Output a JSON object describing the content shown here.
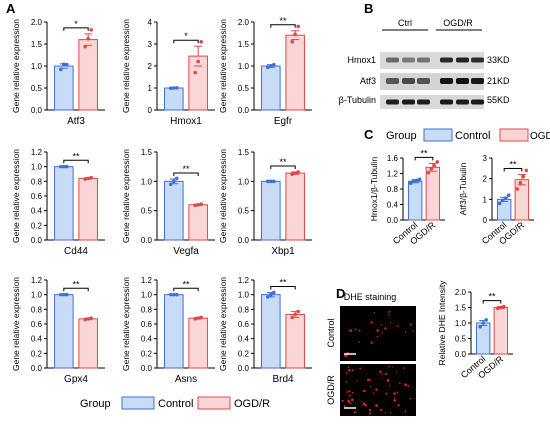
{
  "panels": {
    "A": {
      "label": "A",
      "ylabel": "Gene relative expression"
    },
    "B": {
      "label": "B"
    },
    "C": {
      "label": "C"
    },
    "D": {
      "label": "D",
      "image_title": "DHE staining"
    }
  },
  "legend": {
    "title": "Group",
    "items": [
      {
        "name": "Control",
        "fill": "#c9dcf7",
        "stroke": "#3f6fd6"
      },
      {
        "name": "OGD/R",
        "fill": "#fbd6d6",
        "stroke": "#e04848"
      }
    ]
  },
  "colors": {
    "control_fill": "#c9dcf7",
    "control_stroke": "#3f6fd6",
    "ogd_fill": "#fbd6d6",
    "ogd_stroke": "#e04848"
  },
  "chart_data": [
    {
      "panel": "A",
      "type": "bar",
      "gene": "Atf3",
      "ylabel": "Gene relative expression",
      "categories": [
        "Control",
        "OGD/R"
      ],
      "values": [
        1.0,
        1.6
      ],
      "errors": [
        0.05,
        0.13
      ],
      "ylim": [
        0,
        2.0
      ],
      "yticks": [
        "0.0",
        "0.5",
        "1.0",
        "1.5",
        "2.0"
      ],
      "significance": "*",
      "points": [
        [
          0.92,
          1.04,
          1.03
        ],
        [
          1.44,
          1.62,
          1.82
        ]
      ]
    },
    {
      "panel": "A",
      "type": "bar",
      "gene": "Hmox1",
      "ylabel": "Gene relative expression",
      "categories": [
        "Control",
        "OGD/R"
      ],
      "values": [
        1.0,
        2.45
      ],
      "errors": [
        0.02,
        0.45
      ],
      "ylim": [
        0,
        4
      ],
      "yticks": [
        "0",
        "1",
        "2",
        "3",
        "4"
      ],
      "significance": "*",
      "points": [
        [
          0.99,
          1.0,
          1.01
        ],
        [
          1.7,
          2.2,
          3.1
        ]
      ]
    },
    {
      "panel": "A",
      "type": "bar",
      "gene": "Egfr",
      "ylabel": "Gene relative expression",
      "categories": [
        "Control",
        "OGD/R"
      ],
      "values": [
        1.0,
        1.7
      ],
      "errors": [
        0.03,
        0.1
      ],
      "ylim": [
        0,
        2.0
      ],
      "yticks": [
        "0.0",
        "0.5",
        "1.0",
        "1.5",
        "2.0"
      ],
      "significance": "**",
      "points": [
        [
          0.97,
          1.0,
          1.03
        ],
        [
          1.55,
          1.72,
          1.9
        ]
      ]
    },
    {
      "panel": "A",
      "type": "bar",
      "gene": "Cd44",
      "ylabel": "Gene relative expression",
      "categories": [
        "Control",
        "OGD/R"
      ],
      "values": [
        1.0,
        0.84
      ],
      "errors": [
        0.005,
        0.01
      ],
      "ylim": [
        0,
        1.2
      ],
      "yticks": [
        "0.0",
        "0.2",
        "0.4",
        "0.6",
        "0.8",
        "1.0",
        "1.2"
      ],
      "significance": "**",
      "points": [
        [
          1.0,
          1.0,
          1.0
        ],
        [
          0.83,
          0.84,
          0.85
        ]
      ]
    },
    {
      "panel": "A",
      "type": "bar",
      "gene": "Vegfa",
      "ylabel": "Gene relative expression",
      "categories": [
        "Control",
        "OGD/R"
      ],
      "values": [
        1.0,
        0.6
      ],
      "errors": [
        0.04,
        0.01
      ],
      "ylim": [
        0,
        1.5
      ],
      "yticks": [
        "0.0",
        "0.5",
        "1.0",
        "1.5"
      ],
      "significance": "**",
      "points": [
        [
          0.95,
          1.0,
          1.05
        ],
        [
          0.59,
          0.6,
          0.61
        ]
      ]
    },
    {
      "panel": "A",
      "type": "bar",
      "gene": "Xbp1",
      "ylabel": "Gene relative expression",
      "categories": [
        "Control",
        "OGD/R"
      ],
      "values": [
        1.0,
        1.14
      ],
      "errors": [
        0.005,
        0.02
      ],
      "ylim": [
        0,
        1.5
      ],
      "yticks": [
        "0.0",
        "0.5",
        "1.0",
        "1.5"
      ],
      "significance": "**",
      "points": [
        [
          1.0,
          1.0,
          1.0
        ],
        [
          1.12,
          1.14,
          1.16
        ]
      ]
    },
    {
      "panel": "A",
      "type": "bar",
      "gene": "Gpx4",
      "ylabel": "Gene relative expression",
      "categories": [
        "Control",
        "OGD/R"
      ],
      "values": [
        1.0,
        0.67
      ],
      "errors": [
        0.005,
        0.01
      ],
      "ylim": [
        0,
        1.2
      ],
      "yticks": [
        "0.0",
        "0.2",
        "0.4",
        "0.6",
        "0.8",
        "1.0",
        "1.2"
      ],
      "significance": "**",
      "points": [
        [
          1.0,
          1.0,
          1.0
        ],
        [
          0.66,
          0.67,
          0.68
        ]
      ]
    },
    {
      "panel": "A",
      "type": "bar",
      "gene": "Asns",
      "ylabel": "Gene relative expression",
      "categories": [
        "Control",
        "OGD/R"
      ],
      "values": [
        1.0,
        0.68
      ],
      "errors": [
        0.005,
        0.01
      ],
      "ylim": [
        0,
        1.2
      ],
      "yticks": [
        "0.0",
        "0.2",
        "0.4",
        "0.6",
        "0.8",
        "1.0",
        "1.2"
      ],
      "significance": "**",
      "points": [
        [
          1.0,
          1.0,
          1.0
        ],
        [
          0.67,
          0.68,
          0.69
        ]
      ]
    },
    {
      "panel": "A",
      "type": "bar",
      "gene": "Brd4",
      "ylabel": "Gene relative expression",
      "categories": [
        "Control",
        "OGD/R"
      ],
      "values": [
        1.0,
        0.73
      ],
      "errors": [
        0.03,
        0.04
      ],
      "ylim": [
        0,
        1.2
      ],
      "yticks": [
        "0.0",
        "0.2",
        "0.4",
        "0.6",
        "0.8",
        "1.0",
        "1.2"
      ],
      "significance": "**",
      "points": [
        [
          0.97,
          1.0,
          1.03
        ],
        [
          0.69,
          0.73,
          0.77
        ]
      ]
    },
    {
      "panel": "C",
      "type": "bar",
      "ylabel": "Hmox1/β-Tubulin",
      "categories": [
        "Control",
        "OGD/R"
      ],
      "values": [
        1.0,
        1.36
      ],
      "errors": [
        0.04,
        0.1
      ],
      "ylim": [
        0,
        1.6
      ],
      "yticks": [
        "0.0",
        "0.4",
        "0.8",
        "1.2",
        "1.6"
      ],
      "significance": "**",
      "points": [
        [
          0.95,
          1.0,
          1.02,
          1.05
        ],
        [
          1.22,
          1.32,
          1.4,
          1.5
        ]
      ]
    },
    {
      "panel": "C",
      "type": "bar",
      "ylabel": "Atf3/β-Tubulin",
      "categories": [
        "Control",
        "OGD/R"
      ],
      "values": [
        1.0,
        1.95
      ],
      "errors": [
        0.1,
        0.25
      ],
      "ylim": [
        0,
        3
      ],
      "yticks": [
        "0",
        "1",
        "2",
        "3"
      ],
      "significance": "**",
      "points": [
        [
          0.8,
          0.95,
          1.05,
          1.2
        ],
        [
          1.5,
          1.8,
          2.1,
          2.4
        ]
      ]
    },
    {
      "panel": "D",
      "type": "bar",
      "ylabel": "Relative DHE Intensity",
      "categories": [
        "Control",
        "OGD/R"
      ],
      "values": [
        1.0,
        1.5
      ],
      "errors": [
        0.08,
        0.03
      ],
      "ylim": [
        0,
        2.0
      ],
      "yticks": [
        "0.0",
        "0.5",
        "1.0",
        "1.5",
        "2.0"
      ],
      "significance": "**",
      "points": [
        [
          0.88,
          1.0,
          1.1
        ],
        [
          1.47,
          1.5,
          1.53
        ]
      ]
    }
  ],
  "western_blot": {
    "headers": [
      "Ctrl",
      "OGD/R"
    ],
    "rows": [
      {
        "label": "Hmox1",
        "size": "33KD"
      },
      {
        "label": "Atf3",
        "size": "21KD"
      },
      {
        "label": "β-Tubulin",
        "size": "55KD"
      }
    ]
  },
  "dhe": {
    "rows": [
      "Control",
      "OGD/R"
    ]
  }
}
